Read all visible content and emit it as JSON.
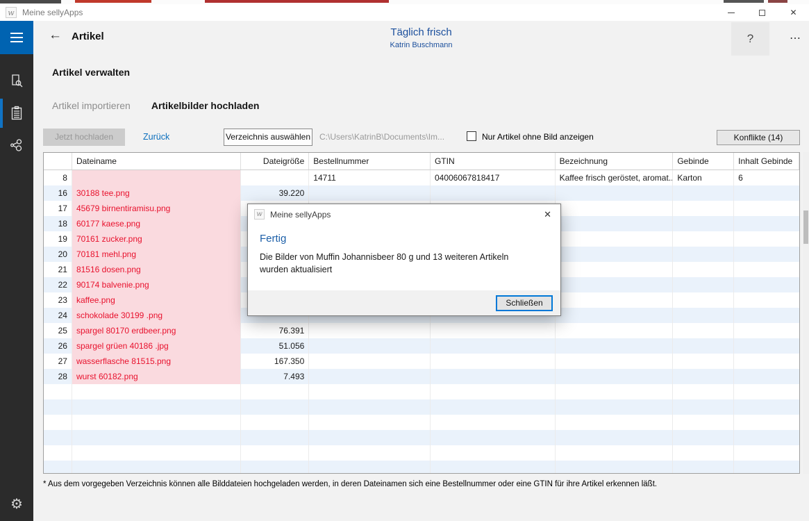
{
  "window": {
    "title": "Meine sellyApps",
    "app_icon_glyph": "w",
    "close_glyph": "✕"
  },
  "header": {
    "back_glyph": "←",
    "title": "Artikel",
    "account_name": "Täglich frisch",
    "user_name": "Katrin Buschmann",
    "help_glyph": "?",
    "more_glyph": "⋯"
  },
  "page": {
    "heading": "Artikel verwalten",
    "tabs": [
      {
        "label": "Artikel importieren",
        "active": false
      },
      {
        "label": "Artikelbilder hochladen",
        "active": true
      }
    ]
  },
  "toolbar": {
    "upload_label": "Jetzt hochladen",
    "back_label": "Zurück",
    "choose_dir_label": "Verzeichnis auswählen",
    "path": "C:\\Users\\KatrinB\\Documents\\Im...",
    "checkbox_label": "Nur Artikel ohne Bild anzeigen",
    "checkbox_checked": false,
    "conflicts_label": "Konflikte (14)"
  },
  "table": {
    "columns": [
      {
        "key": "num",
        "label": ""
      },
      {
        "key": "file",
        "label": "Dateiname"
      },
      {
        "key": "size",
        "label": "Dateigröße"
      },
      {
        "key": "order",
        "label": "Bestellnummer"
      },
      {
        "key": "gtin",
        "label": "GTIN"
      },
      {
        "key": "name",
        "label": "Bezeichnung"
      },
      {
        "key": "unit",
        "label": "Gebinde"
      },
      {
        "key": "content",
        "label": "Inhalt Gebinde"
      }
    ],
    "rows": [
      {
        "num": "8",
        "file": "",
        "size": "",
        "order": "14711",
        "gtin": "04006067818417",
        "name": "Kaffee frisch geröstet, aromat...",
        "unit": "Karton",
        "content": "6"
      },
      {
        "num": "16",
        "file": "30188 tee.png",
        "size": "39.220",
        "order": "",
        "gtin": "",
        "name": "",
        "unit": "",
        "content": ""
      },
      {
        "num": "17",
        "file": "45679 birnentiramisu.png",
        "size": "",
        "order": "",
        "gtin": "",
        "name": "",
        "unit": "",
        "content": ""
      },
      {
        "num": "18",
        "file": "60177 kaese.png",
        "size": "",
        "order": "",
        "gtin": "",
        "name": "",
        "unit": "",
        "content": ""
      },
      {
        "num": "19",
        "file": "70161 zucker.png",
        "size": "",
        "order": "",
        "gtin": "",
        "name": "",
        "unit": "",
        "content": ""
      },
      {
        "num": "20",
        "file": "70181 mehl.png",
        "size": "",
        "order": "",
        "gtin": "",
        "name": "",
        "unit": "",
        "content": ""
      },
      {
        "num": "21",
        "file": "81516 dosen.png",
        "size": "",
        "order": "",
        "gtin": "",
        "name": "",
        "unit": "",
        "content": ""
      },
      {
        "num": "22",
        "file": "90174 balvenie.png",
        "size": "",
        "order": "",
        "gtin": "",
        "name": "",
        "unit": "",
        "content": ""
      },
      {
        "num": "23",
        "file": "kaffee.png",
        "size": "",
        "order": "",
        "gtin": "",
        "name": "",
        "unit": "",
        "content": ""
      },
      {
        "num": "24",
        "file": "schokolade 30199 .png",
        "size": "",
        "order": "",
        "gtin": "",
        "name": "",
        "unit": "",
        "content": ""
      },
      {
        "num": "25",
        "file": "spargel 80170 erdbeer.png",
        "size": "76.391",
        "order": "",
        "gtin": "",
        "name": "",
        "unit": "",
        "content": ""
      },
      {
        "num": "26",
        "file": "spargel grüen 40186 .jpg",
        "size": "51.056",
        "order": "",
        "gtin": "",
        "name": "",
        "unit": "",
        "content": ""
      },
      {
        "num": "27",
        "file": "wasserflasche 81515.png",
        "size": "167.350",
        "order": "",
        "gtin": "",
        "name": "",
        "unit": "",
        "content": ""
      },
      {
        "num": "28",
        "file": "wurst 60182.png",
        "size": "7.493",
        "order": "",
        "gtin": "",
        "name": "",
        "unit": "",
        "content": ""
      }
    ]
  },
  "dialog": {
    "title": "Meine sellyApps",
    "icon_glyph": "w",
    "close_glyph": "✕",
    "heading": "Fertig",
    "message": "Die Bilder von Muffin Johannisbeer 80 g und 13 weiteren Artikeln wurden aktualisiert",
    "close_button": "Schließen"
  },
  "footnote": "* Aus dem vorgegeben Verzeichnis können alle Bilddateien hochgeladen werden, in deren Dateinamen sich eine Bestellnummer oder eine GTIN für ihre Artikel erkennen läßt.",
  "colors": {
    "accent_blue": "#0063b1",
    "link_blue": "#0a6ebd",
    "heading_blue": "#1b4f9c",
    "dialog_heading_blue": "#1c5fa8",
    "error_red": "#e8112d",
    "error_bg_pink": "#fadadf",
    "stripe_blue": "#eaf2fb",
    "focus_border_blue": "#0078d7",
    "sidebar_dark": "#2b2b2b"
  }
}
